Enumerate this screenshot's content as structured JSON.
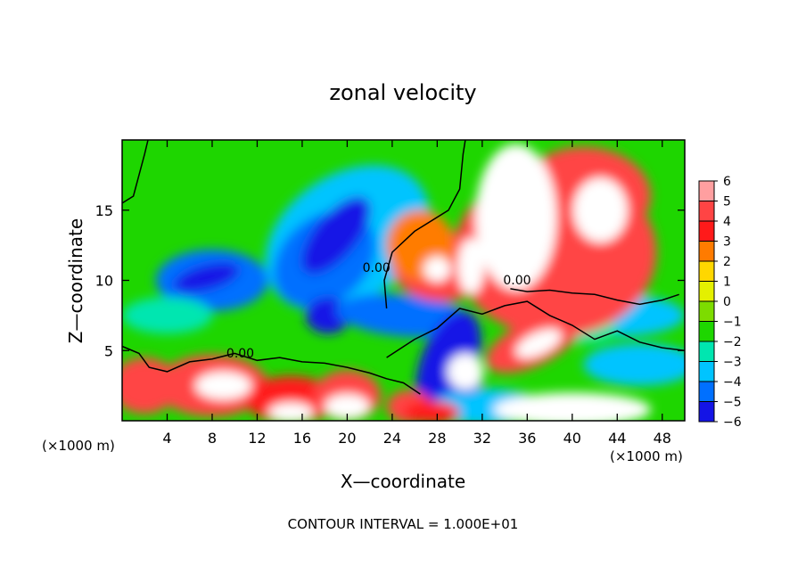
{
  "chart_data": {
    "type": "heatmap",
    "title": "zonal velocity",
    "xlabel": "X—coordinate",
    "ylabel": "Z—coordinate",
    "x_unit_left": "(×1000 m)",
    "x_unit_right": "(×1000 m)",
    "footer": "CONTOUR INTERVAL = 1.000E+01",
    "xlim": [
      0,
      50
    ],
    "ylim": [
      0,
      20
    ],
    "x_ticks": [
      4,
      8,
      12,
      16,
      20,
      24,
      28,
      32,
      36,
      40,
      44,
      48
    ],
    "x_tick_labels": [
      "4",
      "8",
      "12",
      "16",
      "20",
      "24",
      "28",
      "32",
      "36",
      "40",
      "44",
      "48"
    ],
    "y_ticks": [
      5,
      10,
      15
    ],
    "y_tick_labels": [
      "5",
      "10",
      "15"
    ],
    "colorbar": {
      "min": -6,
      "max": 6,
      "levels": [
        6,
        5,
        4,
        3,
        2,
        1,
        0,
        -1,
        -2,
        -3,
        -4,
        -5,
        -6
      ],
      "labels": [
        "6",
        "5",
        "4",
        "3",
        "2",
        "1",
        "0",
        "−1",
        "−2",
        "−3",
        "−4",
        "−5",
        "−6"
      ],
      "colors": [
        "#ff9fa0",
        "#ff4444",
        "#ff1a1a",
        "#ff7b00",
        "#ffd700",
        "#e4f000",
        "#7ddc00",
        "#1ed600",
        "#00e6b0",
        "#00c4ff",
        "#0070ff",
        "#1414e6",
        "#6f0fb4"
      ]
    },
    "contour_labels": [
      {
        "text": "0.00",
        "x": 10.5,
        "y": 4.5
      },
      {
        "text": "0.00",
        "x": 22.6,
        "y": 10.6
      },
      {
        "text": "0.00",
        "x": 35.1,
        "y": 9.7
      }
    ],
    "blobs": [
      {
        "v": -3.5,
        "x": 20,
        "y": 13,
        "rx": 8,
        "ry": 4.5,
        "rot": -35
      },
      {
        "v": -4.5,
        "x": 8,
        "y": 10,
        "rx": 5,
        "ry": 2.2,
        "rot": 0
      },
      {
        "v": -4,
        "x": 18,
        "y": 11.5,
        "rx": 5,
        "ry": 3,
        "rot": -40
      },
      {
        "v": -6,
        "x": 19,
        "y": 13.2,
        "rx": 4.2,
        "ry": 1.5,
        "rot": -50
      },
      {
        "v": -6,
        "x": 7.5,
        "y": 10.2,
        "rx": 3,
        "ry": 0.9,
        "rot": -15
      },
      {
        "v": -6,
        "x": 18.3,
        "y": 7.5,
        "rx": 2,
        "ry": 1.3,
        "rot": 0
      },
      {
        "v": -2.5,
        "x": 4,
        "y": 7.5,
        "rx": 4,
        "ry": 1.3,
        "rot": 0
      },
      {
        "v": -4.5,
        "x": 25,
        "y": 7.5,
        "rx": 6,
        "ry": 1.5,
        "rot": 5
      },
      {
        "v": -5,
        "x": 29,
        "y": 4,
        "rx": 2.5,
        "ry": 4,
        "rot": 20
      },
      {
        "v": -3,
        "x": 32.5,
        "y": 1,
        "rx": 5,
        "ry": 1.3,
        "rot": 0
      },
      {
        "v": -6,
        "x": 30.5,
        "y": 3,
        "rx": 1.6,
        "ry": 1.1,
        "rot": 0
      },
      {
        "v": -3.5,
        "x": 46,
        "y": 4,
        "rx": 5,
        "ry": 1.5,
        "rot": 0
      },
      {
        "v": -3,
        "x": 44,
        "y": 7.5,
        "rx": 6,
        "ry": 1.5,
        "rot": 0
      },
      {
        "v": -2,
        "x": 41,
        "y": 6.5,
        "rx": 3,
        "ry": 1,
        "rot": 0
      },
      {
        "v": 5,
        "x": 38.5,
        "y": 12,
        "rx": 9,
        "ry": 6,
        "rot": 0
      },
      {
        "v": 4.5,
        "x": 41,
        "y": 16,
        "rx": 6,
        "ry": 3.5,
        "rot": 0
      },
      {
        "v": 5,
        "x": 28.5,
        "y": 11,
        "rx": 4.5,
        "ry": 2.5,
        "rot": 0
      },
      {
        "v": 3,
        "x": 26.5,
        "y": 12.5,
        "rx": 3,
        "ry": 2.5,
        "rot": 0
      },
      {
        "v": 4.5,
        "x": 36.5,
        "y": 5.5,
        "rx": 4.5,
        "ry": 1.6,
        "rot": -25
      },
      {
        "v": 8,
        "x": 35,
        "y": 14.5,
        "rx": 3.6,
        "ry": 5.2,
        "rot": 0
      },
      {
        "v": 8,
        "x": 42.5,
        "y": 15,
        "rx": 2.4,
        "ry": 2.3,
        "rot": 0
      },
      {
        "v": 8,
        "x": 28,
        "y": 10.8,
        "rx": 1.2,
        "ry": 0.9,
        "rot": 0
      },
      {
        "v": 8,
        "x": 31,
        "y": 11,
        "rx": 1.2,
        "ry": 2,
        "rot": 0
      },
      {
        "v": 8,
        "x": 37,
        "y": 5.5,
        "rx": 2.2,
        "ry": 0.8,
        "rot": -25
      },
      {
        "v": 4.5,
        "x": 2,
        "y": 2.5,
        "rx": 3,
        "ry": 2,
        "rot": 0
      },
      {
        "v": 4.5,
        "x": 8,
        "y": 2.5,
        "rx": 5,
        "ry": 2.2,
        "rot": 0
      },
      {
        "v": 3.5,
        "x": 15,
        "y": 1.5,
        "rx": 4,
        "ry": 1.7,
        "rot": 0
      },
      {
        "v": 4.5,
        "x": 20,
        "y": 1.8,
        "rx": 3,
        "ry": 1.8,
        "rot": 0
      },
      {
        "v": 4.5,
        "x": 25.5,
        "y": 1,
        "rx": 2,
        "ry": 1.2,
        "rot": 0
      },
      {
        "v": 4,
        "x": 27.5,
        "y": 0.6,
        "rx": 2.5,
        "ry": 0.8,
        "rot": 0
      },
      {
        "v": 8,
        "x": 9,
        "y": 2.5,
        "rx": 2.5,
        "ry": 1,
        "rot": 0
      },
      {
        "v": 8,
        "x": 15,
        "y": 0.6,
        "rx": 2,
        "ry": 0.7,
        "rot": 0
      },
      {
        "v": 8,
        "x": 20,
        "y": 1,
        "rx": 2,
        "ry": 0.9,
        "rot": 0
      },
      {
        "v": 8,
        "x": 30.5,
        "y": 3.5,
        "rx": 1.6,
        "ry": 1.3,
        "rot": 0
      },
      {
        "v": 8,
        "x": 40,
        "y": 0.8,
        "rx": 7,
        "ry": 1.2,
        "rot": 0
      }
    ]
  }
}
